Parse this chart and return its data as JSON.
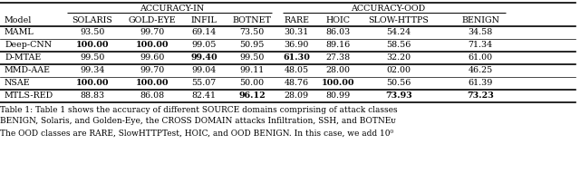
{
  "caption_line1": "Table 1: Table 1 shows the accuracy of different SOURCE domains comprising of attack classes",
  "caption_line2": "BENIGN, Solaris, and Golden-Eye, the CROSS DOMAIN attacks Infiltration, SSH, and BOTNEᴜ",
  "caption_line3": "The OOD classes are RARE, SlowHTTPTest, HOIC, and OOD BENIGN. In this case, we add 10⁰",
  "header_row2": [
    "Model",
    "SOLARIS",
    "GOLD-EYE",
    "INFIL",
    "BOTNET",
    "RARE",
    "HOIC",
    "SLOW-HTTPS",
    "BENIGN"
  ],
  "rows": [
    {
      "model": "MAML",
      "vals": [
        "93.50",
        "99.70",
        "69.14",
        "73.50",
        "30.31",
        "86.03",
        "54.24",
        "34.58"
      ],
      "bold": [
        false,
        false,
        false,
        false,
        false,
        false,
        false,
        false
      ]
    },
    {
      "model": "Deep-CNN",
      "vals": [
        "100.00",
        "100.00",
        "99.05",
        "50.95",
        "36.90",
        "89.16",
        "58.56",
        "71.34"
      ],
      "bold": [
        true,
        true,
        false,
        false,
        false,
        false,
        false,
        false
      ]
    },
    {
      "model": "D-MTAE",
      "vals": [
        "99.50",
        "99.60",
        "99.40",
        "99.50",
        "61.30",
        "27.38",
        "32.20",
        "61.00"
      ],
      "bold": [
        false,
        false,
        true,
        false,
        true,
        false,
        false,
        false
      ]
    },
    {
      "model": "MMD-AAE",
      "vals": [
        "99.34",
        "99.70",
        "99.04",
        "99.11",
        "48.05",
        "28.00",
        "02.00",
        "46.25"
      ],
      "bold": [
        false,
        false,
        false,
        false,
        false,
        false,
        false,
        false
      ]
    },
    {
      "model": "NSAE",
      "vals": [
        "100.00",
        "100.00",
        "55.07",
        "50.00",
        "48.76",
        "100.00",
        "50.56",
        "61.39"
      ],
      "bold": [
        true,
        true,
        false,
        false,
        false,
        true,
        false,
        false
      ]
    },
    {
      "model": "MTLS-RED",
      "vals": [
        "88.83",
        "86.08",
        "82.41",
        "96.12",
        "28.09",
        "80.99",
        "73.93",
        "73.23"
      ],
      "bold": [
        false,
        false,
        false,
        true,
        false,
        false,
        true,
        true
      ]
    }
  ],
  "thick_lines_after_rows": [
    1,
    2,
    4
  ],
  "bg_color": "#ffffff",
  "font_size": 6.8,
  "caption_font_size": 6.5
}
